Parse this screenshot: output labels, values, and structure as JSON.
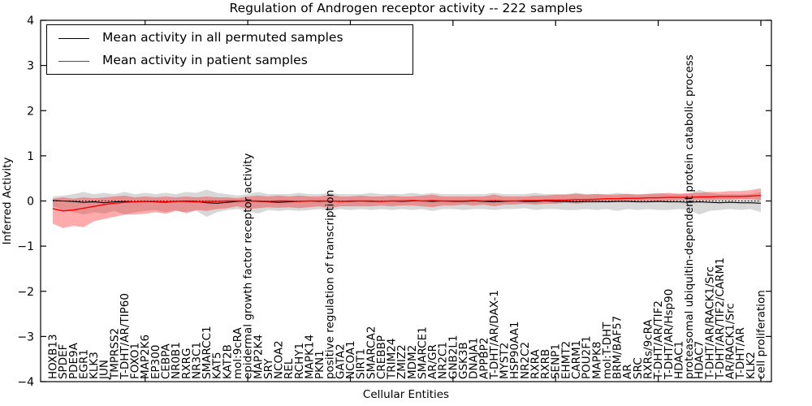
{
  "title": "Regulation of Androgen receptor activity -- 222 samples",
  "xlabel": "Cellular Entities",
  "ylabel": "Inferred Activity",
  "legend": {
    "items": [
      {
        "label": "Mean activity in all permuted samples",
        "color": "#000000"
      },
      {
        "label": "Mean activity in patient samples",
        "color": "#ff0000"
      }
    ]
  },
  "colors": {
    "patient_line": "#ff0000",
    "permuted_line": "#000000",
    "patient_band": "#ff0000",
    "permuted_band": "#999999",
    "axis": "#000000"
  },
  "chart_data": {
    "type": "line",
    "title": "Regulation of Androgen receptor activity -- 222 samples",
    "xlabel": "Cellular Entities",
    "ylabel": "Inferred Activity",
    "ylim": [
      -4,
      4
    ],
    "yticks": [
      -4,
      -3,
      -2,
      -1,
      0,
      1,
      2,
      3,
      4
    ],
    "grid": false,
    "legend_position": "upper-left",
    "zero_line_dotted": true,
    "categories": [
      "HOXB13",
      "SPDEF",
      "PDE9A",
      "EGR1",
      "KLK3",
      "JUN",
      "TMPRSS2",
      "T-DHT/AR/TIP60",
      "FOXO1",
      "MAP2K6",
      "EP300",
      "CEBPA",
      "NR0B1",
      "RXRG",
      "NR3C1",
      "SMARCC1",
      "KAT5",
      "KAT2B",
      "mol:9cRA",
      "epidermal growth factor receptor activity",
      "MAP2K4",
      "SRY",
      "NCOA2",
      "REL",
      "RCHY1",
      "MAPK14",
      "PKN1",
      "positive regulation of transcription",
      "GATA2",
      "NCOA1",
      "SIRT1",
      "SMARCA2",
      "CREBBP",
      "TRIM24",
      "ZMIZ2",
      "MDM2",
      "SMARCE1",
      "AR/GR",
      "NR2C1",
      "GNB2L1",
      "GSK3B",
      "DNAJA1",
      "APPBP2",
      "T-DHT/AR/DAX-1",
      "MYST2",
      "HSP90AA1",
      "NR2C2",
      "RXRA",
      "RXRB",
      "SENP1",
      "EHMT2",
      "CARM1",
      "POU2F1",
      "MAPK8",
      "mol:T-DHT",
      "BRM/BAF57",
      "AR",
      "SRC",
      "RXRs/9cRA",
      "T-DHT/AR/TIF2",
      "T-DHT/AR/Hsp90",
      "HDAC1",
      "proteasomal ubiquitin-dependent protein catabolic process",
      "HDAC7",
      "T-DHT/AR/RACK1/Src",
      "T-DHT/AR/TIF2/CARM1",
      "AR/RACK1/Src",
      "T-DHT/AR",
      "KLK2",
      "cell proliferation"
    ],
    "series": [
      {
        "name": "Mean activity in all permuted samples",
        "color": "#000000",
        "values": [
          0.01,
          0.0,
          -0.01,
          -0.03,
          -0.02,
          -0.04,
          -0.02,
          -0.01,
          -0.02,
          -0.01,
          -0.02,
          -0.03,
          -0.01,
          0.0,
          -0.01,
          -0.04,
          -0.05,
          -0.03,
          -0.01,
          0.0,
          -0.01,
          -0.02,
          -0.03,
          -0.02,
          -0.01,
          0.0,
          -0.01,
          0.0,
          -0.01,
          -0.01,
          0.0,
          -0.01,
          -0.01,
          0.0,
          -0.01,
          0.0,
          0.0,
          -0.01,
          0.0,
          -0.01,
          -0.01,
          0.0,
          -0.01,
          -0.02,
          -0.01,
          0.0,
          -0.01,
          -0.01,
          0.0,
          -0.01,
          -0.01,
          -0.02,
          -0.01,
          -0.01,
          -0.02,
          -0.01,
          -0.01,
          -0.02,
          -0.02,
          -0.01,
          -0.02,
          -0.02,
          -0.03,
          -0.02,
          -0.03,
          -0.04,
          -0.03,
          -0.04,
          -0.04,
          -0.05
        ]
      },
      {
        "name": "Mean activity in patient samples",
        "color": "#ff0000",
        "values": [
          -0.17,
          -0.22,
          -0.2,
          -0.16,
          -0.12,
          -0.08,
          -0.05,
          -0.03,
          -0.02,
          -0.01,
          -0.01,
          -0.02,
          -0.01,
          -0.01,
          -0.02,
          -0.01,
          -0.01,
          0.0,
          0.0,
          0.0,
          0.0,
          -0.01,
          0.0,
          0.0,
          -0.01,
          0.0,
          0.0,
          0.0,
          -0.01,
          0.0,
          0.0,
          0.0,
          -0.01,
          0.0,
          0.0,
          0.01,
          0.0,
          0.01,
          0.0,
          0.0,
          0.0,
          0.01,
          0.0,
          0.01,
          0.0,
          0.0,
          0.01,
          0.01,
          0.02,
          0.02,
          0.02,
          0.03,
          0.03,
          0.04,
          0.05,
          0.05,
          0.06,
          0.06,
          0.07,
          0.07,
          0.08,
          0.08,
          0.08,
          0.09,
          0.09,
          0.1,
          0.1,
          0.1,
          0.11,
          0.12
        ]
      }
    ],
    "bands": [
      {
        "name": "permuted-samples-range",
        "color": "#999999",
        "upper": [
          0.1,
          0.12,
          0.15,
          0.2,
          0.15,
          0.18,
          0.15,
          0.2,
          0.15,
          0.18,
          0.15,
          0.18,
          0.15,
          0.2,
          0.18,
          0.25,
          0.18,
          0.15,
          0.12,
          0.15,
          0.2,
          0.15,
          0.15,
          0.15,
          0.18,
          0.15,
          0.15,
          0.18,
          0.15,
          0.15,
          0.15,
          0.18,
          0.15,
          0.15,
          0.15,
          0.18,
          0.15,
          0.18,
          0.15,
          0.15,
          0.15,
          0.15,
          0.15,
          0.18,
          0.15,
          0.15,
          0.15,
          0.18,
          0.15,
          0.15,
          0.15,
          0.18,
          0.15,
          0.15,
          0.15,
          0.18,
          0.15,
          0.15,
          0.15,
          0.18,
          0.15,
          0.15,
          0.15,
          0.25,
          0.18,
          0.15,
          0.15,
          0.15,
          0.15,
          0.2
        ],
        "lower": [
          -0.12,
          -0.2,
          -0.25,
          -0.3,
          -0.25,
          -0.28,
          -0.22,
          -0.3,
          -0.25,
          -0.22,
          -0.2,
          -0.25,
          -0.2,
          -0.28,
          -0.22,
          -0.35,
          -0.25,
          -0.2,
          -0.18,
          -0.22,
          -0.28,
          -0.2,
          -0.22,
          -0.2,
          -0.22,
          -0.2,
          -0.18,
          -0.22,
          -0.18,
          -0.2,
          -0.18,
          -0.2,
          -0.18,
          -0.2,
          -0.18,
          -0.2,
          -0.18,
          -0.22,
          -0.18,
          -0.18,
          -0.2,
          -0.18,
          -0.18,
          -0.2,
          -0.18,
          -0.18,
          -0.16,
          -0.2,
          -0.18,
          -0.18,
          -0.2,
          -0.2,
          -0.18,
          -0.2,
          -0.18,
          -0.22,
          -0.18,
          -0.2,
          -0.18,
          -0.2,
          -0.2,
          -0.18,
          -0.2,
          -0.3,
          -0.22,
          -0.2,
          -0.18,
          -0.2,
          -0.18,
          -0.25
        ]
      },
      {
        "name": "patient-samples-range",
        "color": "#ff0000",
        "upper": [
          0.05,
          0.08,
          0.05,
          0.08,
          0.06,
          0.08,
          0.1,
          0.12,
          0.08,
          0.1,
          0.08,
          0.1,
          0.08,
          0.1,
          0.08,
          0.1,
          0.08,
          0.08,
          0.06,
          0.1,
          0.12,
          0.1,
          0.12,
          0.1,
          0.12,
          0.1,
          0.1,
          0.14,
          0.1,
          0.1,
          0.12,
          0.1,
          0.1,
          0.12,
          0.1,
          0.1,
          0.12,
          0.14,
          0.1,
          0.1,
          0.1,
          0.1,
          0.1,
          0.14,
          0.1,
          0.1,
          0.1,
          0.12,
          0.12,
          0.14,
          0.14,
          0.16,
          0.14,
          0.16,
          0.14,
          0.14,
          0.16,
          0.14,
          0.16,
          0.16,
          0.18,
          0.16,
          0.18,
          0.18,
          0.2,
          0.2,
          0.22,
          0.22,
          0.24,
          0.28
        ],
        "lower": [
          -0.5,
          -0.6,
          -0.55,
          -0.58,
          -0.45,
          -0.4,
          -0.35,
          -0.3,
          -0.3,
          -0.28,
          -0.25,
          -0.28,
          -0.22,
          -0.25,
          -0.2,
          -0.22,
          -0.18,
          -0.16,
          -0.12,
          -0.18,
          -0.16,
          -0.14,
          -0.15,
          -0.14,
          -0.16,
          -0.14,
          -0.12,
          -0.16,
          -0.12,
          -0.12,
          -0.12,
          -0.12,
          -0.1,
          -0.12,
          -0.1,
          -0.1,
          -0.12,
          -0.14,
          -0.1,
          -0.1,
          -0.08,
          -0.1,
          -0.08,
          -0.12,
          -0.08,
          -0.08,
          -0.06,
          -0.08,
          -0.06,
          -0.06,
          -0.04,
          -0.06,
          -0.04,
          -0.04,
          -0.02,
          -0.02,
          -0.02,
          0.0,
          0.0,
          0.0,
          0.0,
          0.02,
          0.02,
          0.02,
          0.02,
          0.03,
          0.03,
          0.04,
          0.04,
          0.02
        ]
      }
    ]
  }
}
